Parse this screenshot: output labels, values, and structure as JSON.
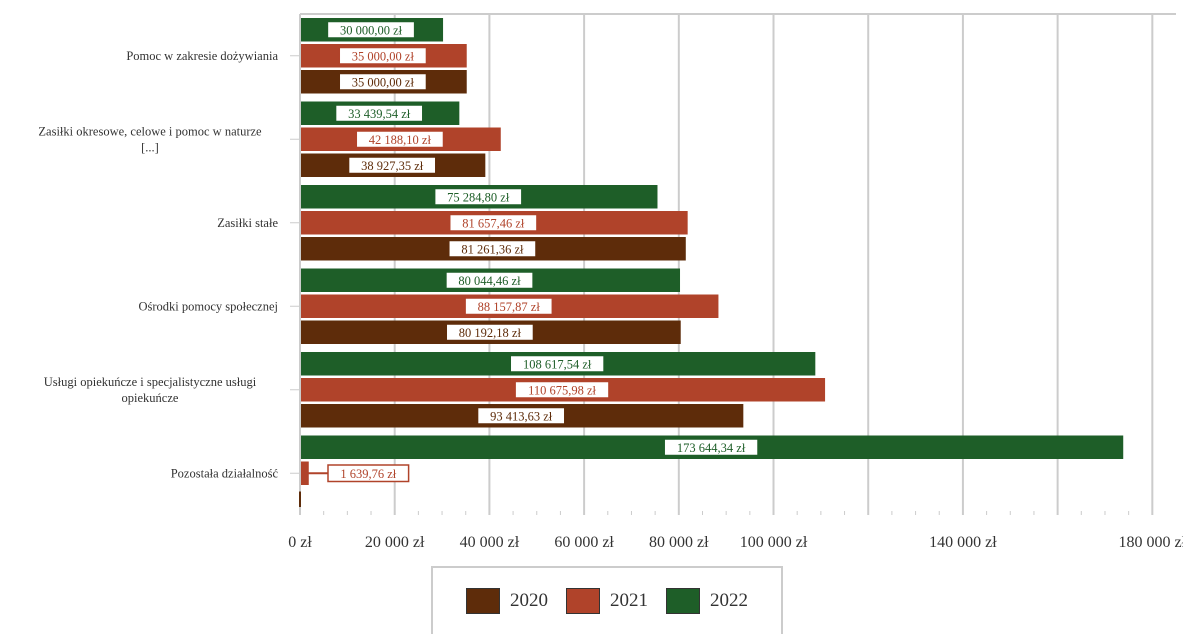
{
  "chart_data": {
    "type": "bar",
    "orientation": "horizontal",
    "categories": [
      "Pomoc w zakresie dożywiania",
      "Zasiłki okresowe, celowe i pomoc w naturze [...]",
      "Zasiłki stałe",
      "Ośrodki pomocy społecznej",
      "Usługi opiekuńcze i specjalistyczne usługi opiekuńcze",
      "Pozostała działalność"
    ],
    "series": [
      {
        "name": "2022",
        "color": "#1e5e28",
        "values": [
          30000.0,
          33439.54,
          75284.8,
          80044.46,
          108617.54,
          173644.34
        ],
        "labels": [
          "30 000,00 zł",
          "33 439,54 zł",
          "75 284,80 zł",
          "80 044,46 zł",
          "108 617,54 zł",
          "173 644,34 zł"
        ]
      },
      {
        "name": "2021",
        "color": "#b0432a",
        "values": [
          35000.0,
          42188.1,
          81657.46,
          88157.87,
          110675.98,
          1639.76
        ],
        "labels": [
          "35 000,00 zł",
          "42 188,10 zł",
          "81 657,46 zł",
          "88 157,87 zł",
          "110 675,98 zł",
          "1 639,76 zł"
        ]
      },
      {
        "name": "2020",
        "color": "#5e2c0a",
        "values": [
          35000.0,
          38927.35,
          81261.36,
          80192.18,
          93413.63,
          0
        ],
        "labels": [
          "35 000,00 zł",
          "38 927,35 zł",
          "81 261,36 zł",
          "80 192,18 zł",
          "93 413,63 zł",
          ""
        ]
      }
    ],
    "xlim": [
      0,
      185000
    ],
    "x_ticks": [
      0,
      20000,
      40000,
      60000,
      80000,
      100000,
      120000,
      140000,
      160000,
      180000
    ],
    "x_tick_labels": [
      "0 zł",
      "20 000 zł",
      "40 000 zł",
      "60 000 zł",
      "80 000 zł",
      "100 000 zł",
      "",
      "140 000 zł",
      "",
      "180 000 zł"
    ],
    "grid": true,
    "legend_position": "bottom"
  },
  "legend": {
    "items": [
      {
        "label": "2020",
        "color": "#5e2c0a"
      },
      {
        "label": "2021",
        "color": "#b0432a"
      },
      {
        "label": "2022",
        "color": "#1e5e28"
      }
    ]
  }
}
